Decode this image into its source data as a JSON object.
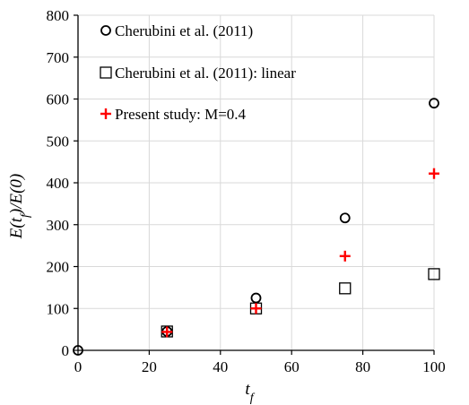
{
  "chart_data": {
    "type": "scatter",
    "xlabel": "t_f",
    "ylabel": "E(t_f)/E(0)",
    "xlim": [
      0,
      100
    ],
    "ylim": [
      0,
      800
    ],
    "xticks": [
      0,
      20,
      40,
      60,
      80,
      100
    ],
    "yticks": [
      0,
      100,
      200,
      300,
      400,
      500,
      600,
      700,
      800
    ],
    "grid": true,
    "legend_position": "top-left",
    "series": [
      {
        "name": "Cherubini et al. (2011)",
        "marker": "circle",
        "color": "#000000",
        "x": [
          0,
          25,
          50,
          75,
          100
        ],
        "y": [
          0,
          45,
          125,
          316,
          590
        ]
      },
      {
        "name": "Cherubini et al. (2011): linear",
        "marker": "square",
        "color": "#000000",
        "x": [
          25,
          50,
          75,
          100
        ],
        "y": [
          45,
          100,
          148,
          182
        ]
      },
      {
        "name": "Present study: M=0.4",
        "marker": "plus",
        "color": "#ff0000",
        "x": [
          25,
          50,
          75,
          100
        ],
        "y": [
          44,
          100,
          225,
          422
        ]
      }
    ]
  }
}
